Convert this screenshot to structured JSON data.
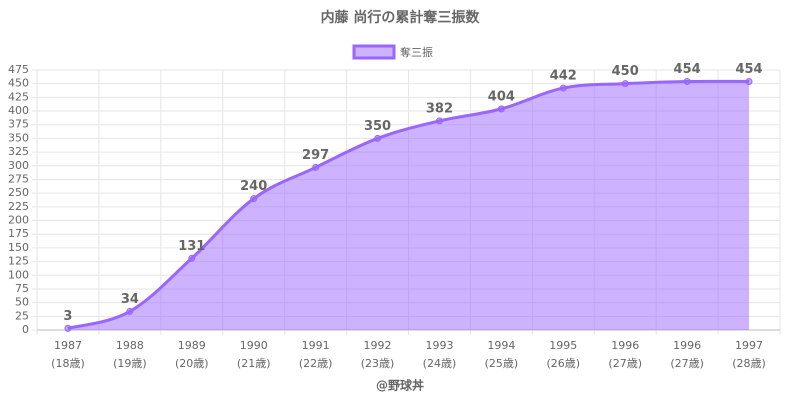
{
  "chart_data": {
    "type": "area",
    "title": "内藤 尚行の累計奪三振数",
    "credit": "@野球丼",
    "categories": [
      [
        "1987",
        "(18歳)"
      ],
      [
        "1988",
        "(19歳)"
      ],
      [
        "1989",
        "(20歳)"
      ],
      [
        "1990",
        "(21歳)"
      ],
      [
        "1991",
        "(22歳)"
      ],
      [
        "1992",
        "(23歳)"
      ],
      [
        "1993",
        "(24歳)"
      ],
      [
        "1994",
        "(25歳)"
      ],
      [
        "1995",
        "(26歳)"
      ],
      [
        "1996",
        "(27歳)"
      ],
      [
        "1996",
        "(27歳)"
      ],
      [
        "1997",
        "(28歳)"
      ]
    ],
    "series": [
      {
        "name": "奪三振",
        "color": "#9966ff",
        "values": [
          3,
          34,
          131,
          240,
          297,
          350,
          382,
          404,
          442,
          450,
          454,
          454
        ]
      }
    ],
    "ylim": [
      0,
      475
    ],
    "yticks": [
      0,
      25,
      50,
      75,
      100,
      125,
      150,
      175,
      200,
      225,
      250,
      275,
      300,
      325,
      350,
      375,
      400,
      425,
      450,
      475
    ],
    "grid": true
  }
}
